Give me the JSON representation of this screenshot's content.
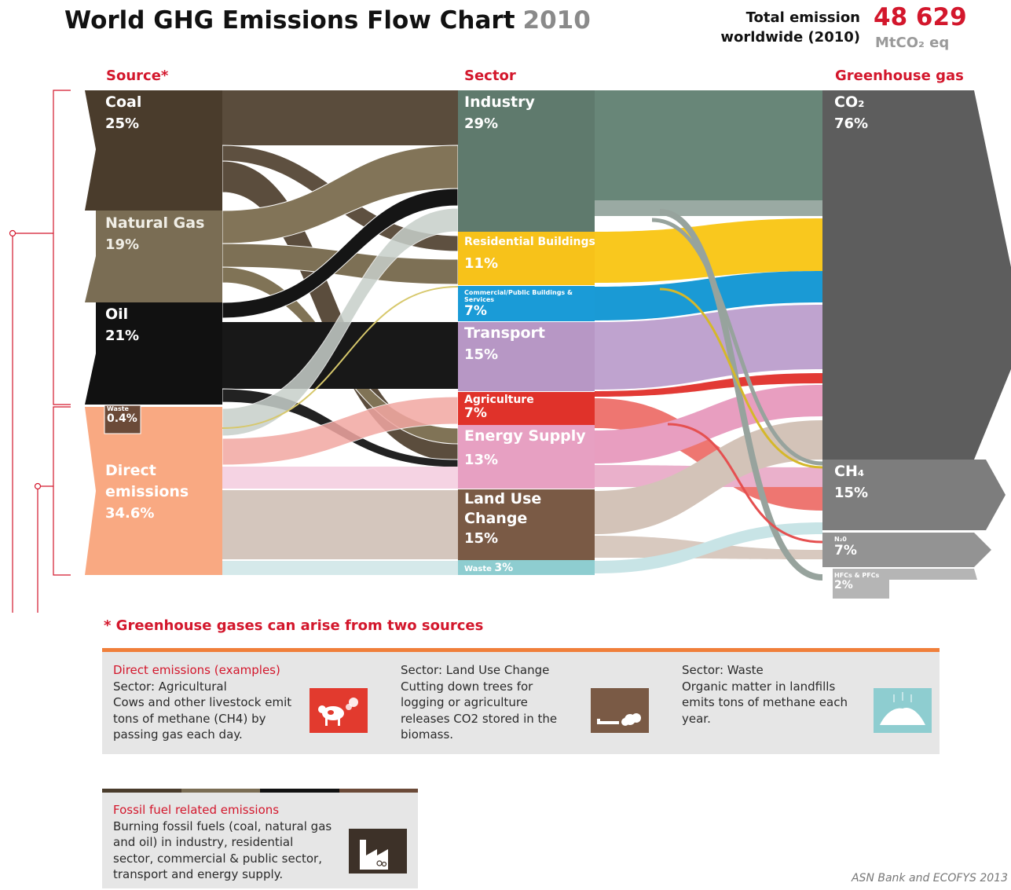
{
  "header": {
    "title": "World GHG Emissions Flow Chart",
    "year": "2010",
    "total_label_1": "Total emission",
    "total_label_2": "worldwide (2010)",
    "total_value": "48 629",
    "total_unit": "MtCO₂ eq"
  },
  "columns": {
    "source": "Source*",
    "sector": "Sector",
    "gas": "Greenhouse gas"
  },
  "sources": [
    {
      "name": "Coal",
      "pct": "25%",
      "color": "#4a3c2c"
    },
    {
      "name": "Natural Gas",
      "pct": "19%",
      "color": "#7a6d54"
    },
    {
      "name": "Oil",
      "pct": "21%",
      "color": "#111111"
    },
    {
      "name": "Waste",
      "pct": "0.4%",
      "color": "#6b4a38"
    },
    {
      "name": "Direct emissions",
      "pct": "34.6%",
      "color": "#f9a982"
    }
  ],
  "sectors": [
    {
      "name": "Industry",
      "pct": "29%",
      "color": "#5f7a6d"
    },
    {
      "name": "Residential Buildings",
      "pct": "11%",
      "color": "#f7c21a"
    },
    {
      "name": "Commercial/Public Buildings & Services",
      "pct": "7%",
      "color": "#1a9bd7"
    },
    {
      "name": "Transport",
      "pct": "15%",
      "color": "#b797c5"
    },
    {
      "name": "Agriculture",
      "pct": "7%",
      "color": "#e0322a"
    },
    {
      "name": "Energy Supply",
      "pct": "13%",
      "color": "#e7a0c2"
    },
    {
      "name": "Land Use Change",
      "pct": "15%",
      "color": "#7a5a45"
    },
    {
      "name": "Waste",
      "pct": "3%",
      "color": "#8ecdd0"
    }
  ],
  "gases": [
    {
      "name": "CO₂",
      "pct": "76%",
      "color": "#5d5d5d"
    },
    {
      "name": "CH₄",
      "pct": "15%",
      "color": "#7d7d7d"
    },
    {
      "name": "N₂0",
      "pct": "7%",
      "color": "#939393"
    },
    {
      "name": "HFCs & PFCs",
      "pct": "2%",
      "color": "#b5b5b5"
    }
  ],
  "note_title": "* Greenhouse gases can arise from two sources",
  "direct_panel": {
    "accent": "#f07f3a",
    "col1": {
      "title": "Direct emissions (examples)",
      "line1": "Sector: Agricultural",
      "body": "Cows and other livestock emit tons of methane (CH4) by passing gas each day."
    },
    "col2": {
      "line1": "Sector: Land Use Change",
      "body": "Cutting down trees for logging or agriculture releases CO2 stored in the biomass."
    },
    "col3": {
      "line1": "Sector: Waste",
      "body": "Organic matter in landfills emits  tons of methane each year."
    }
  },
  "fossil_panel": {
    "title": "Fossil fuel related emissions",
    "body": "Burning fossil fuels (coal, natural gas and oil) in industry, residential sector, commercial & public sector, transport and energy supply."
  },
  "icons": [
    "cow-icon",
    "tree-cutting-icon",
    "landfill-icon",
    "factory-icon"
  ],
  "credit": "ASN Bank and ECOFYS 2013"
}
